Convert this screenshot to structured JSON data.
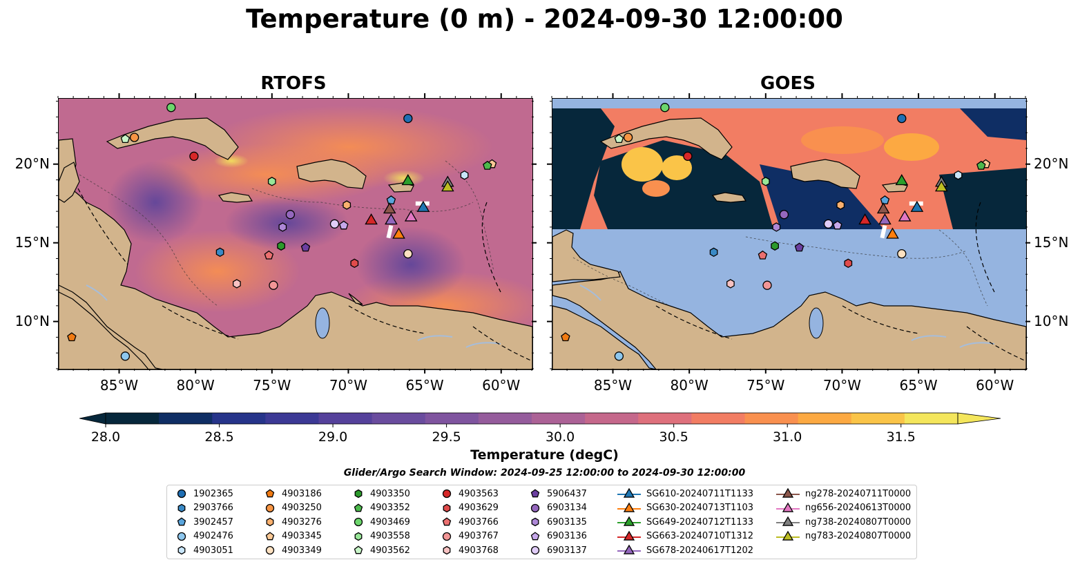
{
  "title": "Temperature (0 m) - 2024-09-30 12:00:00",
  "panels": [
    {
      "title": "RTOFS"
    },
    {
      "title": "GOES"
    }
  ],
  "map": {
    "lon_range": [
      -89,
      -58
    ],
    "lat_range": [
      7,
      24.2
    ],
    "x_ticks": [
      "85°W",
      "80°W",
      "75°W",
      "70°W",
      "65°W",
      "60°W"
    ],
    "y_ticks": [
      "20°N",
      "15°N",
      "10°N"
    ],
    "colors": {
      "land": "#d2b48c",
      "ocean_nodata": "#95b4e0",
      "river": "#a6bddb"
    }
  },
  "colorbar": {
    "label": "Temperature (degC)",
    "ticks": [
      "28.0",
      "28.5",
      "29.0",
      "29.5",
      "30.0",
      "30.5",
      "31.0",
      "31.5"
    ],
    "range": [
      28.0,
      31.75
    ],
    "colors": [
      "#06273b",
      "#0f2e64",
      "#26348a",
      "#3c3995",
      "#55419b",
      "#6a4c9e",
      "#7f549f",
      "#955c9c",
      "#ac6296",
      "#c5688b",
      "#de707c",
      "#f27d63",
      "#f9904f",
      "#fca942",
      "#fac448",
      "#f4e65c"
    ]
  },
  "search_window": "Glider/Argo Search Window: 2024-09-25 12:00:00 to 2024-09-30 12:00:00",
  "legend": [
    {
      "label": "1902365",
      "marker": "circle",
      "color": "#1f6fb4",
      "lon": -66.1,
      "lat": 22.9
    },
    {
      "label": "2903766",
      "marker": "hexagon",
      "color": "#3a8ac6",
      "lon": -78.4,
      "lat": 14.4
    },
    {
      "label": "3902457",
      "marker": "pentagon",
      "color": "#5aa5dc",
      "lon": -67.2,
      "lat": 17.7
    },
    {
      "label": "4902476",
      "marker": "circle",
      "color": "#8ec7ee",
      "lon": -84.6,
      "lat": 7.8
    },
    {
      "label": "4903051",
      "marker": "hexagon",
      "color": "#c9e6fa",
      "lon": -62.4,
      "lat": 19.3
    },
    {
      "label": "4903186",
      "marker": "pentagon",
      "color": "#f07a12",
      "lon": -88.1,
      "lat": 9.0
    },
    {
      "label": "4903250",
      "marker": "circle",
      "color": "#f79544",
      "lon": -84.0,
      "lat": 21.7
    },
    {
      "label": "4903276",
      "marker": "hexagon",
      "color": "#fab16f",
      "lon": -70.1,
      "lat": 17.4
    },
    {
      "label": "4903345",
      "marker": "pentagon",
      "color": "#fcc996",
      "lon": -60.6,
      "lat": 20.0
    },
    {
      "label": "4903349",
      "marker": "circle",
      "color": "#fde1c1",
      "lon": -66.1,
      "lat": 14.3
    },
    {
      "label": "4903350",
      "marker": "hexagon",
      "color": "#2b9a2b",
      "lon": -74.4,
      "lat": 14.8
    },
    {
      "label": "4903352",
      "marker": "pentagon",
      "color": "#4cb94c",
      "lon": -60.9,
      "lat": 19.9
    },
    {
      "label": "4903469",
      "marker": "circle",
      "color": "#6cd66c",
      "lon": -81.6,
      "lat": 23.6
    },
    {
      "label": "4903558",
      "marker": "hexagon",
      "color": "#98e698",
      "lon": -75.0,
      "lat": 18.9
    },
    {
      "label": "4903562",
      "marker": "pentagon",
      "color": "#c8f5c8",
      "lon": -84.6,
      "lat": 21.6
    },
    {
      "label": "4903563",
      "marker": "circle",
      "color": "#d62728",
      "lon": -80.1,
      "lat": 20.5
    },
    {
      "label": "4903629",
      "marker": "hexagon",
      "color": "#e04b4b",
      "lon": -69.6,
      "lat": 13.7
    },
    {
      "label": "4903766",
      "marker": "pentagon",
      "color": "#eb7070",
      "lon": -75.2,
      "lat": 14.2
    },
    {
      "label": "4903767",
      "marker": "circle",
      "color": "#f29696",
      "lon": -74.9,
      "lat": 12.3
    },
    {
      "label": "4903768",
      "marker": "hexagon",
      "color": "#f8c2c2",
      "lon": -77.3,
      "lat": 12.4
    },
    {
      "label": "5906437",
      "marker": "pentagon",
      "color": "#6b3fa0",
      "lon": -72.8,
      "lat": 14.7
    },
    {
      "label": "6903134",
      "marker": "circle",
      "color": "#9467bd",
      "lon": -73.8,
      "lat": 16.8
    },
    {
      "label": "6903135",
      "marker": "hexagon",
      "color": "#ad87d6",
      "lon": -74.3,
      "lat": 16.0
    },
    {
      "label": "6903136",
      "marker": "pentagon",
      "color": "#c6a8ea",
      "lon": -70.3,
      "lat": 16.1
    },
    {
      "label": "6903137",
      "marker": "circle",
      "color": "#e0ccf7",
      "lon": -70.9,
      "lat": 16.2
    },
    {
      "label": "SG610-20240711T1133",
      "marker": "triangle",
      "color": "#1f77b4",
      "lon": -65.1,
      "lat": 17.2
    },
    {
      "label": "SG630-20240713T1103",
      "marker": "triangle",
      "color": "#ff7f0e",
      "lon": -66.7,
      "lat": 15.5
    },
    {
      "label": "SG649-20240712T1133",
      "marker": "triangle",
      "color": "#2ca02c",
      "lon": -66.1,
      "lat": 18.9
    },
    {
      "label": "SG663-20240710T1312",
      "marker": "triangle",
      "color": "#d62728",
      "lon": -68.5,
      "lat": 16.4
    },
    {
      "label": "SG678-20240617T1202",
      "marker": "triangle",
      "color": "#9467bd",
      "lon": -67.2,
      "lat": 16.4
    },
    {
      "label": "ng278-20240711T0000",
      "marker": "triangle",
      "color": "#8c564b",
      "lon": -67.3,
      "lat": 17.1
    },
    {
      "label": "ng656-20240613T0000",
      "marker": "triangle",
      "color": "#e377c2",
      "lon": -65.9,
      "lat": 16.6
    },
    {
      "label": "ng738-20240807T0000",
      "marker": "triangle",
      "color": "#7f7f7f",
      "lon": -63.5,
      "lat": 18.8
    },
    {
      "label": "ng783-20240807T0000",
      "marker": "triangle",
      "color": "#bcbd22",
      "lon": -63.5,
      "lat": 18.5
    }
  ]
}
